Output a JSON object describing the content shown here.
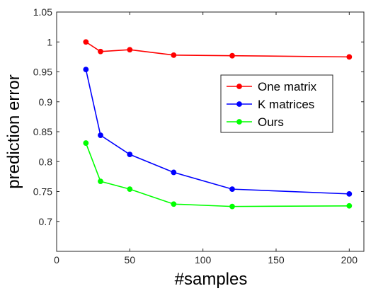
{
  "chart_data": {
    "type": "line",
    "xlabel": "#samples",
    "ylabel": "prediction error",
    "xlim": [
      0,
      210
    ],
    "ylim": [
      0.65,
      1.05
    ],
    "xticks": [
      0,
      50,
      100,
      150,
      200
    ],
    "xtick_labels": [
      "0",
      "50",
      "100",
      "150",
      "200"
    ],
    "yticks": [
      0.7,
      0.75,
      0.8,
      0.85,
      0.9,
      0.95,
      1.0,
      1.05
    ],
    "ytick_labels": [
      "0.7",
      "0.75",
      "0.8",
      "0.85",
      "0.9",
      "0.95",
      "1",
      "1.05"
    ],
    "grid": false,
    "legend_position": "right",
    "x": [
      20,
      30,
      50,
      80,
      120,
      200
    ],
    "series": [
      {
        "name": "One matrix",
        "color": "#ff0000",
        "values": [
          1.0,
          0.984,
          0.987,
          0.978,
          0.977,
          0.975
        ]
      },
      {
        "name": "K matrices",
        "color": "#0000ff",
        "values": [
          0.954,
          0.844,
          0.812,
          0.782,
          0.754,
          0.746
        ]
      },
      {
        "name": "Ours",
        "color": "#00ff00",
        "values": [
          0.831,
          0.767,
          0.754,
          0.729,
          0.725,
          0.726
        ]
      }
    ]
  }
}
